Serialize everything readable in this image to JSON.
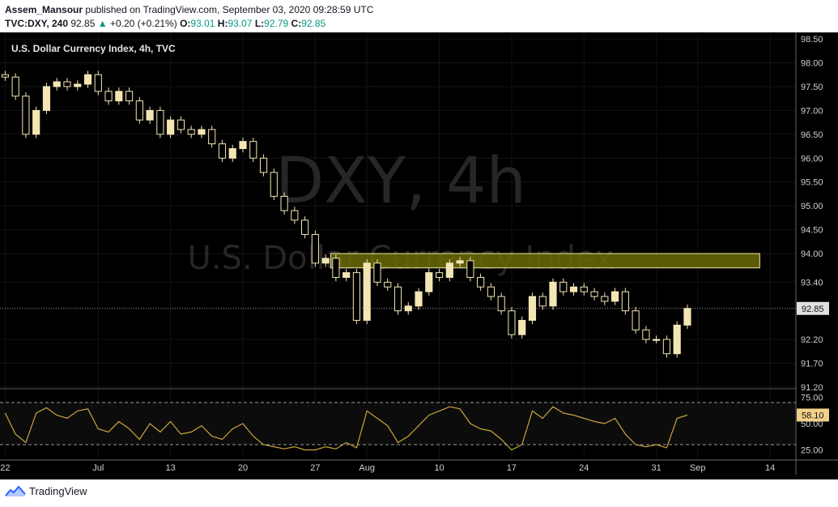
{
  "header": {
    "author": "Assem_Mansour",
    "published_text": "published on TradingView.com, September 03, 2020 09:28:59 UTC",
    "symbol": "TVC:DXY, 240",
    "last_price": "92.85",
    "change": "+0.20 (+0.21%)",
    "open_label": "O:",
    "open": "93.01",
    "high_label": "H:",
    "high": "93.07",
    "low_label": "L:",
    "low": "92.79",
    "close_label": "C:",
    "close": "92.85"
  },
  "footer": {
    "brand": "TradingView"
  },
  "colors": {
    "background": "#000000",
    "candle": "#f3e6b4",
    "rsi_line": "#c9a63c",
    "zone_fill": "#6b6a08",
    "zone_border": "#f0eca0",
    "price_tag": "#e0e0e0",
    "rsi_tag": "#f2d08a"
  },
  "chart_data": {
    "type": "candlestick",
    "title": "U.S. Dollar Currency Index, 4h, TVC",
    "watermark_symbol": "DXY, 4h",
    "watermark_name": "U.S. Dollar Currency Index",
    "y_ticks": [
      "98.50",
      "98.00",
      "97.50",
      "97.00",
      "96.50",
      "96.00",
      "95.50",
      "95.00",
      "94.50",
      "94.00",
      "93.40",
      "92.85",
      "92.20",
      "91.70",
      "91.20"
    ],
    "ylim": [
      91.2,
      98.5
    ],
    "current_price": 92.85,
    "current_price_label": "92.85",
    "resistance_zone": {
      "from": 93.7,
      "to": 94.0,
      "start_x": 31.5,
      "end_x": 73.0
    },
    "x_ticks": [
      {
        "x": 0,
        "label": "22"
      },
      {
        "x": 9,
        "label": "Jul"
      },
      {
        "x": 16,
        "label": "13"
      },
      {
        "x": 23,
        "label": "20"
      },
      {
        "x": 30,
        "label": "27"
      },
      {
        "x": 35,
        "label": "Aug"
      },
      {
        "x": 42,
        "label": "10"
      },
      {
        "x": 49,
        "label": "17"
      },
      {
        "x": 56,
        "label": "24"
      },
      {
        "x": 63,
        "label": "31"
      },
      {
        "x": 67,
        "label": "Sep"
      },
      {
        "x": 74,
        "label": "14"
      }
    ],
    "xlim": [
      -0.5,
      76.5
    ],
    "series": [
      {
        "x": 0,
        "value": 97.7
      },
      {
        "x": 1,
        "value": 97.3
      },
      {
        "x": 2,
        "value": 96.5
      },
      {
        "x": 3,
        "value": 97.0
      },
      {
        "x": 4,
        "value": 97.5
      },
      {
        "x": 5,
        "value": 97.6
      },
      {
        "x": 6,
        "value": 97.5
      },
      {
        "x": 7,
        "value": 97.55
      },
      {
        "x": 8,
        "value": 97.75
      },
      {
        "x": 9,
        "value": 97.4
      },
      {
        "x": 10,
        "value": 97.2
      },
      {
        "x": 11,
        "value": 97.4
      },
      {
        "x": 12,
        "value": 97.2
      },
      {
        "x": 13,
        "value": 96.8
      },
      {
        "x": 14,
        "value": 97.0
      },
      {
        "x": 15,
        "value": 96.5
      },
      {
        "x": 16,
        "value": 96.8
      },
      {
        "x": 17,
        "value": 96.6
      },
      {
        "x": 18,
        "value": 96.5
      },
      {
        "x": 19,
        "value": 96.6
      },
      {
        "x": 20,
        "value": 96.3
      },
      {
        "x": 21,
        "value": 96.0
      },
      {
        "x": 22,
        "value": 96.2
      },
      {
        "x": 23,
        "value": 96.35
      },
      {
        "x": 24,
        "value": 96.0
      },
      {
        "x": 25,
        "value": 95.7
      },
      {
        "x": 26,
        "value": 95.2
      },
      {
        "x": 27,
        "value": 94.9
      },
      {
        "x": 28,
        "value": 94.7
      },
      {
        "x": 29,
        "value": 94.4
      },
      {
        "x": 30,
        "value": 93.8
      },
      {
        "x": 31,
        "value": 93.9
      },
      {
        "x": 32,
        "value": 93.5
      },
      {
        "x": 33,
        "value": 93.6
      },
      {
        "x": 34,
        "value": 92.6
      },
      {
        "x": 35,
        "value": 93.8
      },
      {
        "x": 36,
        "value": 93.4
      },
      {
        "x": 37,
        "value": 93.3
      },
      {
        "x": 38,
        "value": 92.8
      },
      {
        "x": 39,
        "value": 92.9
      },
      {
        "x": 40,
        "value": 93.2
      },
      {
        "x": 41,
        "value": 93.6
      },
      {
        "x": 42,
        "value": 93.5
      },
      {
        "x": 43,
        "value": 93.8
      },
      {
        "x": 44,
        "value": 93.85
      },
      {
        "x": 45,
        "value": 93.5
      },
      {
        "x": 46,
        "value": 93.3
      },
      {
        "x": 47,
        "value": 93.1
      },
      {
        "x": 48,
        "value": 92.8
      },
      {
        "x": 49,
        "value": 92.3
      },
      {
        "x": 50,
        "value": 92.6
      },
      {
        "x": 51,
        "value": 93.1
      },
      {
        "x": 52,
        "value": 92.9
      },
      {
        "x": 53,
        "value": 93.4
      },
      {
        "x": 54,
        "value": 93.2
      },
      {
        "x": 55,
        "value": 93.3
      },
      {
        "x": 56,
        "value": 93.2
      },
      {
        "x": 57,
        "value": 93.1
      },
      {
        "x": 58,
        "value": 93.0
      },
      {
        "x": 59,
        "value": 93.2
      },
      {
        "x": 60,
        "value": 92.8
      },
      {
        "x": 61,
        "value": 92.4
      },
      {
        "x": 62,
        "value": 92.2
      },
      {
        "x": 63,
        "value": 92.2
      },
      {
        "x": 64,
        "value": 91.9
      },
      {
        "x": 65,
        "value": 92.5
      },
      {
        "x": 66,
        "value": 92.85
      }
    ],
    "rsi": {
      "value": 58.1,
      "value_label": "58.10",
      "ylim": [
        20,
        80
      ],
      "y_ticks": [
        "75.00",
        "50.00",
        "25.00"
      ],
      "levels": [
        70,
        30
      ],
      "values": [
        {
          "x": 0,
          "value": 60
        },
        {
          "x": 1,
          "value": 40
        },
        {
          "x": 2,
          "value": 32
        },
        {
          "x": 3,
          "value": 60
        },
        {
          "x": 4,
          "value": 65
        },
        {
          "x": 5,
          "value": 58
        },
        {
          "x": 6,
          "value": 55
        },
        {
          "x": 7,
          "value": 62
        },
        {
          "x": 8,
          "value": 64
        },
        {
          "x": 9,
          "value": 45
        },
        {
          "x": 10,
          "value": 42
        },
        {
          "x": 11,
          "value": 52
        },
        {
          "x": 12,
          "value": 45
        },
        {
          "x": 13,
          "value": 35
        },
        {
          "x": 14,
          "value": 50
        },
        {
          "x": 15,
          "value": 42
        },
        {
          "x": 16,
          "value": 52
        },
        {
          "x": 17,
          "value": 40
        },
        {
          "x": 18,
          "value": 42
        },
        {
          "x": 19,
          "value": 48
        },
        {
          "x": 20,
          "value": 38
        },
        {
          "x": 21,
          "value": 35
        },
        {
          "x": 22,
          "value": 45
        },
        {
          "x": 23,
          "value": 50
        },
        {
          "x": 24,
          "value": 38
        },
        {
          "x": 25,
          "value": 30
        },
        {
          "x": 26,
          "value": 28
        },
        {
          "x": 27,
          "value": 26
        },
        {
          "x": 28,
          "value": 28
        },
        {
          "x": 29,
          "value": 25
        },
        {
          "x": 30,
          "value": 25
        },
        {
          "x": 31,
          "value": 28
        },
        {
          "x": 32,
          "value": 26
        },
        {
          "x": 33,
          "value": 32
        },
        {
          "x": 34,
          "value": 27
        },
        {
          "x": 35,
          "value": 62
        },
        {
          "x": 36,
          "value": 55
        },
        {
          "x": 37,
          "value": 48
        },
        {
          "x": 38,
          "value": 32
        },
        {
          "x": 39,
          "value": 38
        },
        {
          "x": 40,
          "value": 48
        },
        {
          "x": 41,
          "value": 58
        },
        {
          "x": 42,
          "value": 62
        },
        {
          "x": 43,
          "value": 66
        },
        {
          "x": 44,
          "value": 64
        },
        {
          "x": 45,
          "value": 50
        },
        {
          "x": 46,
          "value": 45
        },
        {
          "x": 47,
          "value": 43
        },
        {
          "x": 48,
          "value": 35
        },
        {
          "x": 49,
          "value": 25
        },
        {
          "x": 50,
          "value": 30
        },
        {
          "x": 51,
          "value": 62
        },
        {
          "x": 52,
          "value": 55
        },
        {
          "x": 53,
          "value": 66
        },
        {
          "x": 54,
          "value": 60
        },
        {
          "x": 55,
          "value": 58
        },
        {
          "x": 56,
          "value": 55
        },
        {
          "x": 57,
          "value": 52
        },
        {
          "x": 58,
          "value": 50
        },
        {
          "x": 59,
          "value": 55
        },
        {
          "x": 60,
          "value": 40
        },
        {
          "x": 61,
          "value": 30
        },
        {
          "x": 62,
          "value": 28
        },
        {
          "x": 63,
          "value": 30
        },
        {
          "x": 64,
          "value": 27
        },
        {
          "x": 65,
          "value": 55
        },
        {
          "x": 66,
          "value": 58.1
        }
      ]
    }
  }
}
